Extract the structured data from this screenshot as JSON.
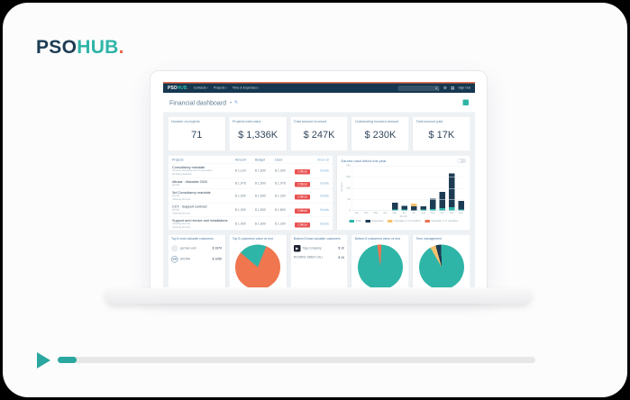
{
  "logo": {
    "pso": "PSO",
    "hub": "HUB",
    "dot": "."
  },
  "player": {
    "progress_percent": 4
  },
  "dashboard": {
    "navbar": {
      "logo_pso": "PSO",
      "logo_hub": "HUB",
      "logo_dot": ".",
      "nav_items": [
        "Contacts",
        "Projects",
        "Time & Expenses"
      ],
      "sign_out": "Sign Out"
    },
    "header": {
      "title": "Financial dashboard"
    },
    "kpis": [
      {
        "label": "Number of projects",
        "value": "71"
      },
      {
        "label": "Projects total value",
        "value": "$ 1,336K"
      },
      {
        "label": "Total amount invoiced",
        "value": "$ 247K"
      },
      {
        "label": "Outstanding invoiced amount",
        "value": "$ 230K"
      },
      {
        "label": "Total amount paid",
        "value": "$ 17K"
      }
    ],
    "projects": {
      "title": "Projects",
      "columns": [
        "Amount",
        "Budget",
        "Used"
      ],
      "show_all": "Show all",
      "details_label": "Details",
      "status_label": "Critical",
      "rows": [
        {
          "name": "Consultancy mandate",
          "sub": [
            "Income Development Corporation",
            "Housing Estates"
          ],
          "amount": "$ 1,124",
          "budget": "$ 1,500",
          "used": "$ 1,300"
        },
        {
          "name": "Altusar - Mandate 2020",
          "sub": [
            "airsoft"
          ],
          "amount": "$ 1,078",
          "budget": "$ 1,500",
          "used": "$ 1,078"
        },
        {
          "name": "3rd Consultancy mandate",
          "sub": [
            "airsoft",
            "missing kronos"
          ],
          "amount": "$ 1,000",
          "budget": "$ 1,500",
          "used": "$ 1,200"
        },
        {
          "name": "CCT - Support contract",
          "sub": [
            "airsoft",
            "missing kronos"
          ],
          "amount": "$ 1,000",
          "budget": "$ 1,500",
          "used": "$ 1,800"
        },
        {
          "name": "Support and resolve and installations",
          "sub": [
            "missing kronos",
            "missing kronos"
          ],
          "amount": "$ 1,000",
          "budget": "$ 1,600",
          "used": "$ 1,200"
        }
      ]
    },
    "customers": {
      "top_title": "Top 5 most valuable customers",
      "top_rows": [
        {
          "name": "gorman.com",
          "value": "$ 187K",
          "logo": "gorman",
          "logo_text": ""
        },
        {
          "name": "AVORA",
          "value": "$ 105K",
          "logo": "vw",
          "logo_text": "VW"
        }
      ],
      "bottom_title": "Bottom 5 least valuable customers",
      "bottom_rows": [
        {
          "name": "Taja Company",
          "value": "$ 1K",
          "logo": "dark",
          "logo_text": ""
        },
        {
          "name": "ROURKE SNER CALI",
          "value": "$ 1K",
          "logo": "none",
          "logo_text": ""
        }
      ]
    }
  },
  "chart_data": [
    {
      "type": "bar",
      "title": "Earned cash inflow this year",
      "xlabel": "Month",
      "ylabel": "Amount",
      "ylim": [
        0,
        240
      ],
      "yticks": [
        0,
        60,
        120,
        180,
        240
      ],
      "categories": [
        "Jan",
        "Feb",
        "Mar",
        "Apr",
        "May",
        "Jun",
        "Jul",
        "Aug",
        "Sep",
        "Oct",
        "Nov",
        "Dec"
      ],
      "series": [
        {
          "name": "Paid",
          "color": "#2fb5a8",
          "values": [
            0,
            0,
            0,
            0,
            4,
            4,
            0,
            4,
            8,
            12,
            18,
            4
          ]
        },
        {
          "name": "Expected",
          "color": "#1d3c53",
          "values": [
            0,
            0,
            0,
            0,
            38,
            20,
            22,
            18,
            54,
            86,
            178,
            47
          ]
        },
        {
          "name": "Overdue (< 2 months)",
          "color": "#f5c06e",
          "values": [
            0,
            0,
            0,
            0,
            0,
            0,
            14,
            0,
            0,
            0,
            0,
            0
          ]
        },
        {
          "name": "Overdue (> 2 months)",
          "color": "#ee7352",
          "values": [
            0,
            0,
            0,
            0,
            0,
            0,
            0,
            0,
            0,
            0,
            0,
            0
          ]
        }
      ],
      "legend_position": "bottom",
      "grid": true
    },
    {
      "type": "pie",
      "title": "Top 5 customers value vs rest",
      "start_deg": -50,
      "slices": [
        {
          "label": "Top 5",
          "value": 20,
          "color": "#2fb5a8"
        },
        {
          "label": "Rest",
          "value": 80,
          "color": "#ef764f"
        }
      ]
    },
    {
      "type": "pie",
      "title": "Bottom 5 customers value vs rest",
      "start_deg": -8,
      "slices": [
        {
          "label": "Bottom 5",
          "value": 3,
          "color": "#ef764f"
        },
        {
          "label": "Rest",
          "value": 97,
          "color": "#2fb5a8"
        }
      ]
    },
    {
      "type": "pie",
      "title": "Time management",
      "start_deg": -30,
      "slices": [
        {
          "label": "Overdue",
          "value": 4,
          "color": "#f5c06e"
        },
        {
          "label": "Planned",
          "value": 4,
          "color": "#1d3c53"
        },
        {
          "label": "Registered",
          "value": 92,
          "color": "#2fb5a8"
        }
      ]
    }
  ]
}
